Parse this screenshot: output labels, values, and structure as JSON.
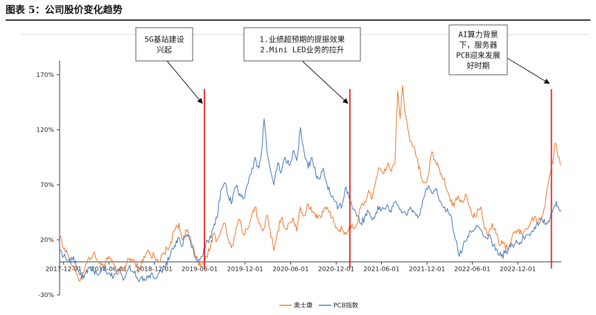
{
  "header": {
    "title": "图表 5：公司股价变化趋势"
  },
  "chart_data": {
    "type": "line",
    "title": "",
    "xlabel": "",
    "ylabel": "",
    "ylim": [
      -30,
      180
    ],
    "yticks": [
      -30,
      20,
      70,
      120,
      170
    ],
    "ytick_labels": [
      "-30%",
      "20%",
      "70%",
      "120%",
      "170%"
    ],
    "x_range": [
      "2017-11-15",
      "2023-05-25"
    ],
    "xticks": [
      "2017-12-01",
      "2018-06-01",
      "2018-12-01",
      "2019-06-01",
      "2019-12-01",
      "2020-06-01",
      "2020-12-01",
      "2021-06-01",
      "2021-12-01",
      "2022-06-01",
      "2022-12-01"
    ],
    "legend_position": "bottom-center",
    "grid": false,
    "series": [
      {
        "name": "奥士康",
        "color": "#ed7d31",
        "points": [
          [
            "2017-11-15",
            25
          ],
          [
            "2017-12-01",
            12
          ],
          [
            "2017-12-20",
            5
          ],
          [
            "2018-01-10",
            -3
          ],
          [
            "2018-02-01",
            -17
          ],
          [
            "2018-02-20",
            -10
          ],
          [
            "2018-03-10",
            3
          ],
          [
            "2018-04-01",
            8
          ],
          [
            "2018-04-20",
            0
          ],
          [
            "2018-05-10",
            -5
          ],
          [
            "2018-06-01",
            5
          ],
          [
            "2018-06-20",
            -2
          ],
          [
            "2018-07-10",
            -10
          ],
          [
            "2018-08-01",
            -5
          ],
          [
            "2018-08-20",
            3
          ],
          [
            "2018-09-10",
            2
          ],
          [
            "2018-10-01",
            -8
          ],
          [
            "2018-10-20",
            5
          ],
          [
            "2018-11-10",
            8
          ],
          [
            "2018-12-01",
            5
          ],
          [
            "2018-12-20",
            0
          ],
          [
            "2019-01-10",
            8
          ],
          [
            "2019-02-01",
            15
          ],
          [
            "2019-02-20",
            28
          ],
          [
            "2019-03-10",
            35
          ],
          [
            "2019-03-25",
            20
          ],
          [
            "2019-04-10",
            28
          ],
          [
            "2019-04-25",
            22
          ],
          [
            "2019-05-10",
            10
          ],
          [
            "2019-05-25",
            0
          ],
          [
            "2019-06-10",
            -3
          ],
          [
            "2019-06-25",
            5
          ],
          [
            "2019-07-10",
            10
          ],
          [
            "2019-07-25",
            25
          ],
          [
            "2019-08-10",
            20
          ],
          [
            "2019-08-25",
            28
          ],
          [
            "2019-09-10",
            35
          ],
          [
            "2019-09-25",
            20
          ],
          [
            "2019-10-10",
            15
          ],
          [
            "2019-10-25",
            30
          ],
          [
            "2019-11-10",
            38
          ],
          [
            "2019-11-25",
            25
          ],
          [
            "2019-12-10",
            30
          ],
          [
            "2019-12-25",
            40
          ],
          [
            "2020-01-10",
            50
          ],
          [
            "2020-01-25",
            35
          ],
          [
            "2020-02-10",
            28
          ],
          [
            "2020-02-25",
            42
          ],
          [
            "2020-03-10",
            30
          ],
          [
            "2020-03-25",
            10
          ],
          [
            "2020-04-10",
            28
          ],
          [
            "2020-04-25",
            40
          ],
          [
            "2020-05-10",
            30
          ],
          [
            "2020-05-25",
            35
          ],
          [
            "2020-06-10",
            40
          ],
          [
            "2020-06-25",
            28
          ],
          [
            "2020-07-10",
            50
          ],
          [
            "2020-07-25",
            42
          ],
          [
            "2020-08-10",
            53
          ],
          [
            "2020-08-25",
            45
          ],
          [
            "2020-09-10",
            40
          ],
          [
            "2020-09-25",
            42
          ],
          [
            "2020-10-10",
            45
          ],
          [
            "2020-10-25",
            50
          ],
          [
            "2020-11-10",
            40
          ],
          [
            "2020-11-25",
            35
          ],
          [
            "2020-12-10",
            28
          ],
          [
            "2020-12-25",
            30
          ],
          [
            "2021-01-10",
            25
          ],
          [
            "2021-01-25",
            35
          ],
          [
            "2021-02-10",
            30
          ],
          [
            "2021-02-25",
            35
          ],
          [
            "2021-03-10",
            50
          ],
          [
            "2021-03-25",
            55
          ],
          [
            "2021-04-10",
            65
          ],
          [
            "2021-04-25",
            58
          ],
          [
            "2021-05-10",
            75
          ],
          [
            "2021-05-25",
            85
          ],
          [
            "2021-06-10",
            80
          ],
          [
            "2021-06-25",
            88
          ],
          [
            "2021-07-10",
            82
          ],
          [
            "2021-07-25",
            90
          ],
          [
            "2021-08-05",
            155
          ],
          [
            "2021-08-15",
            130
          ],
          [
            "2021-08-25",
            160
          ],
          [
            "2021-09-05",
            135
          ],
          [
            "2021-09-20",
            115
          ],
          [
            "2021-10-05",
            105
          ],
          [
            "2021-10-20",
            95
          ],
          [
            "2021-11-05",
            80
          ],
          [
            "2021-11-20",
            72
          ],
          [
            "2021-12-05",
            78
          ],
          [
            "2021-12-20",
            100
          ],
          [
            "2022-01-05",
            90
          ],
          [
            "2022-01-20",
            85
          ],
          [
            "2022-02-05",
            75
          ],
          [
            "2022-02-20",
            65
          ],
          [
            "2022-03-05",
            55
          ],
          [
            "2022-03-20",
            50
          ],
          [
            "2022-04-05",
            60
          ],
          [
            "2022-04-20",
            55
          ],
          [
            "2022-05-05",
            62
          ],
          [
            "2022-05-20",
            50
          ],
          [
            "2022-06-05",
            40
          ],
          [
            "2022-06-20",
            45
          ],
          [
            "2022-07-05",
            50
          ],
          [
            "2022-07-20",
            30
          ],
          [
            "2022-08-05",
            25
          ],
          [
            "2022-08-20",
            35
          ],
          [
            "2022-09-05",
            25
          ],
          [
            "2022-09-20",
            15
          ],
          [
            "2022-10-05",
            18
          ],
          [
            "2022-10-20",
            12
          ],
          [
            "2022-11-05",
            20
          ],
          [
            "2022-11-20",
            28
          ],
          [
            "2022-12-05",
            30
          ],
          [
            "2022-12-20",
            25
          ],
          [
            "2023-01-05",
            30
          ],
          [
            "2023-01-20",
            35
          ],
          [
            "2023-02-05",
            40
          ],
          [
            "2023-02-20",
            35
          ],
          [
            "2023-03-05",
            40
          ],
          [
            "2023-03-20",
            50
          ],
          [
            "2023-04-05",
            75
          ],
          [
            "2023-04-20",
            90
          ],
          [
            "2023-05-01",
            108
          ],
          [
            "2023-05-12",
            95
          ],
          [
            "2023-05-25",
            88
          ]
        ]
      },
      {
        "name": "PCB指数",
        "color": "#4a7ebb",
        "points": [
          [
            "2017-11-15",
            12
          ],
          [
            "2017-12-01",
            5
          ],
          [
            "2017-12-20",
            0
          ],
          [
            "2018-01-10",
            5
          ],
          [
            "2018-02-01",
            -10
          ],
          [
            "2018-02-20",
            -15
          ],
          [
            "2018-03-10",
            -5
          ],
          [
            "2018-04-01",
            -8
          ],
          [
            "2018-04-20",
            -12
          ],
          [
            "2018-05-10",
            -5
          ],
          [
            "2018-06-01",
            -10
          ],
          [
            "2018-06-20",
            -14
          ],
          [
            "2018-07-10",
            -8
          ],
          [
            "2018-08-01",
            -15
          ],
          [
            "2018-08-20",
            -5
          ],
          [
            "2018-09-10",
            -10
          ],
          [
            "2018-10-01",
            -18
          ],
          [
            "2018-10-20",
            -15
          ],
          [
            "2018-11-10",
            -12
          ],
          [
            "2018-12-01",
            -15
          ],
          [
            "2018-12-20",
            -10
          ],
          [
            "2019-01-10",
            -5
          ],
          [
            "2019-02-01",
            5
          ],
          [
            "2019-02-20",
            15
          ],
          [
            "2019-03-10",
            22
          ],
          [
            "2019-03-25",
            15
          ],
          [
            "2019-04-10",
            25
          ],
          [
            "2019-04-25",
            18
          ],
          [
            "2019-05-10",
            5
          ],
          [
            "2019-05-25",
            0
          ],
          [
            "2019-06-10",
            5
          ],
          [
            "2019-06-25",
            15
          ],
          [
            "2019-07-10",
            20
          ],
          [
            "2019-07-25",
            30
          ],
          [
            "2019-08-10",
            40
          ],
          [
            "2019-08-25",
            65
          ],
          [
            "2019-09-10",
            72
          ],
          [
            "2019-09-25",
            60
          ],
          [
            "2019-10-10",
            55
          ],
          [
            "2019-10-25",
            68
          ],
          [
            "2019-11-10",
            62
          ],
          [
            "2019-11-25",
            58
          ],
          [
            "2019-12-10",
            70
          ],
          [
            "2019-12-25",
            80
          ],
          [
            "2020-01-10",
            95
          ],
          [
            "2020-01-25",
            85
          ],
          [
            "2020-02-05",
            100
          ],
          [
            "2020-02-15",
            130
          ],
          [
            "2020-02-25",
            105
          ],
          [
            "2020-03-10",
            85
          ],
          [
            "2020-03-25",
            70
          ],
          [
            "2020-04-10",
            90
          ],
          [
            "2020-04-25",
            82
          ],
          [
            "2020-05-10",
            95
          ],
          [
            "2020-05-25",
            88
          ],
          [
            "2020-06-10",
            100
          ],
          [
            "2020-06-25",
            92
          ],
          [
            "2020-07-10",
            122
          ],
          [
            "2020-07-25",
            100
          ],
          [
            "2020-08-10",
            85
          ],
          [
            "2020-08-25",
            95
          ],
          [
            "2020-09-10",
            80
          ],
          [
            "2020-09-25",
            75
          ],
          [
            "2020-10-10",
            85
          ],
          [
            "2020-10-25",
            70
          ],
          [
            "2020-11-10",
            60
          ],
          [
            "2020-11-25",
            55
          ],
          [
            "2020-12-10",
            50
          ],
          [
            "2020-12-25",
            52
          ],
          [
            "2021-01-10",
            68
          ],
          [
            "2021-01-25",
            55
          ],
          [
            "2021-02-10",
            48
          ],
          [
            "2021-02-25",
            42
          ],
          [
            "2021-03-10",
            35
          ],
          [
            "2021-03-25",
            40
          ],
          [
            "2021-04-10",
            45
          ],
          [
            "2021-04-25",
            38
          ],
          [
            "2021-05-10",
            45
          ],
          [
            "2021-05-25",
            50
          ],
          [
            "2021-06-10",
            48
          ],
          [
            "2021-06-25",
            52
          ],
          [
            "2021-07-10",
            45
          ],
          [
            "2021-07-25",
            55
          ],
          [
            "2021-08-10",
            50
          ],
          [
            "2021-08-25",
            45
          ],
          [
            "2021-09-10",
            42
          ],
          [
            "2021-09-25",
            50
          ],
          [
            "2021-10-10",
            45
          ],
          [
            "2021-10-25",
            40
          ],
          [
            "2021-11-10",
            50
          ],
          [
            "2021-11-25",
            65
          ],
          [
            "2021-12-10",
            68
          ],
          [
            "2021-12-25",
            62
          ],
          [
            "2022-01-10",
            65
          ],
          [
            "2022-01-25",
            55
          ],
          [
            "2022-02-10",
            50
          ],
          [
            "2022-02-25",
            45
          ],
          [
            "2022-03-10",
            40
          ],
          [
            "2022-03-25",
            20
          ],
          [
            "2022-04-10",
            5
          ],
          [
            "2022-04-25",
            15
          ],
          [
            "2022-05-10",
            20
          ],
          [
            "2022-05-25",
            28
          ],
          [
            "2022-06-10",
            30
          ],
          [
            "2022-06-25",
            32
          ],
          [
            "2022-07-10",
            28
          ],
          [
            "2022-07-25",
            22
          ],
          [
            "2022-08-10",
            25
          ],
          [
            "2022-08-25",
            15
          ],
          [
            "2022-09-10",
            10
          ],
          [
            "2022-09-25",
            5
          ],
          [
            "2022-10-10",
            8
          ],
          [
            "2022-10-25",
            12
          ],
          [
            "2022-11-10",
            15
          ],
          [
            "2022-11-25",
            20
          ],
          [
            "2022-12-10",
            18
          ],
          [
            "2022-12-25",
            22
          ],
          [
            "2023-01-10",
            25
          ],
          [
            "2023-01-25",
            28
          ],
          [
            "2023-02-10",
            30
          ],
          [
            "2023-02-25",
            35
          ],
          [
            "2023-03-10",
            38
          ],
          [
            "2023-03-25",
            35
          ],
          [
            "2023-04-10",
            40
          ],
          [
            "2023-04-25",
            50
          ],
          [
            "2023-05-05",
            55
          ],
          [
            "2023-05-15",
            48
          ],
          [
            "2023-05-25",
            46
          ]
        ]
      }
    ],
    "event_lines": [
      {
        "date": "2019-06-20",
        "color": "#e41a1c"
      },
      {
        "date": "2021-01-25",
        "color": "#e41a1c"
      },
      {
        "date": "2023-04-15",
        "color": "#e41a1c"
      }
    ],
    "annotations": [
      {
        "lines": [
          "5G基站建设",
          "兴起"
        ],
        "target_date": "2019-06-20",
        "target_value": 144
      },
      {
        "lines": [
          "1.业绩超预期的提振效果",
          "2.Mini LED业务的拉升"
        ],
        "target_date": "2021-01-25",
        "target_value": 144
      },
      {
        "lines": [
          "AI算力背景",
          "下，服务器",
          "PCB迎来发展",
          "好时期"
        ],
        "target_date": "2023-04-15",
        "target_value": 162
      }
    ]
  }
}
